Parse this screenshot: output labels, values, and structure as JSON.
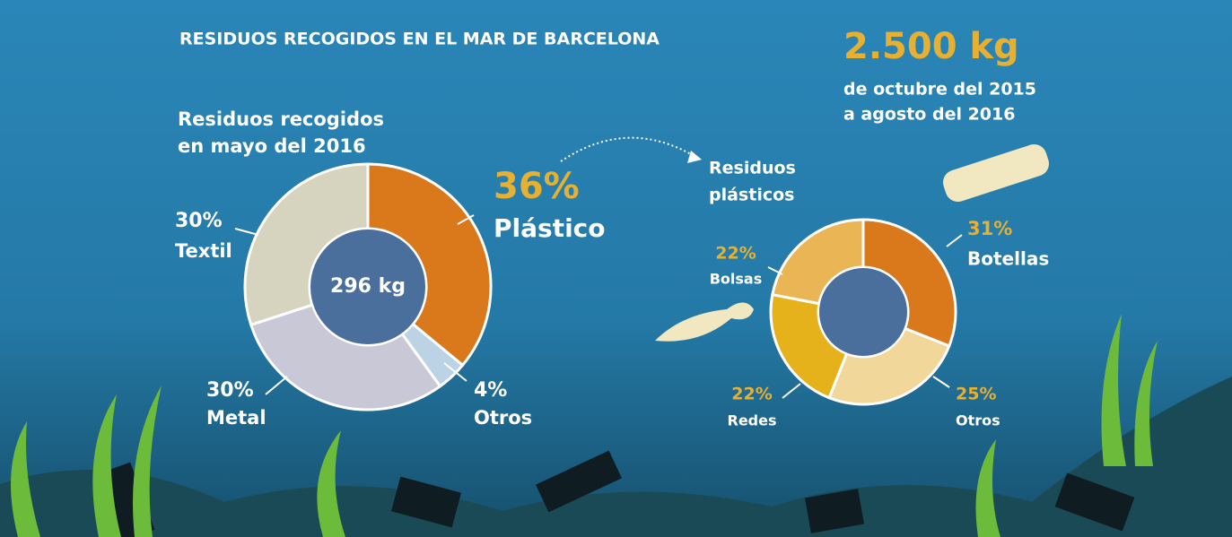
{
  "title": "RESIDUOS RECOGIDOS EN EL MAR DE BARCELONA",
  "total": {
    "amount": "2.500 kg",
    "period_lines": [
      "de octubre del 2015",
      "a agosto del 2016"
    ]
  },
  "chart_data": [
    {
      "type": "pie",
      "title_lines": [
        "Residuos recogidos",
        "en mayo del 2016"
      ],
      "center_label": "296 kg",
      "categories": [
        "Plástico",
        "Otros",
        "Metal",
        "Textil"
      ],
      "values": [
        36,
        4,
        30,
        30
      ],
      "value_labels": [
        "36%",
        "4%",
        "30%",
        "30%"
      ],
      "colors": [
        "#d9791b",
        "#bcd3e6",
        "#c9c8d6",
        "#d6d3bf"
      ]
    },
    {
      "type": "pie",
      "title_lines": [
        "Residuos",
        "plásticos"
      ],
      "categories": [
        "Botellas",
        "Otros",
        "Redes",
        "Bolsas"
      ],
      "values": [
        31,
        25,
        22,
        22
      ],
      "value_labels": [
        "31%",
        "25%",
        "22%",
        "22%"
      ],
      "colors": [
        "#d9791b",
        "#f2d79b",
        "#e6b21c",
        "#e9b555"
      ]
    }
  ]
}
